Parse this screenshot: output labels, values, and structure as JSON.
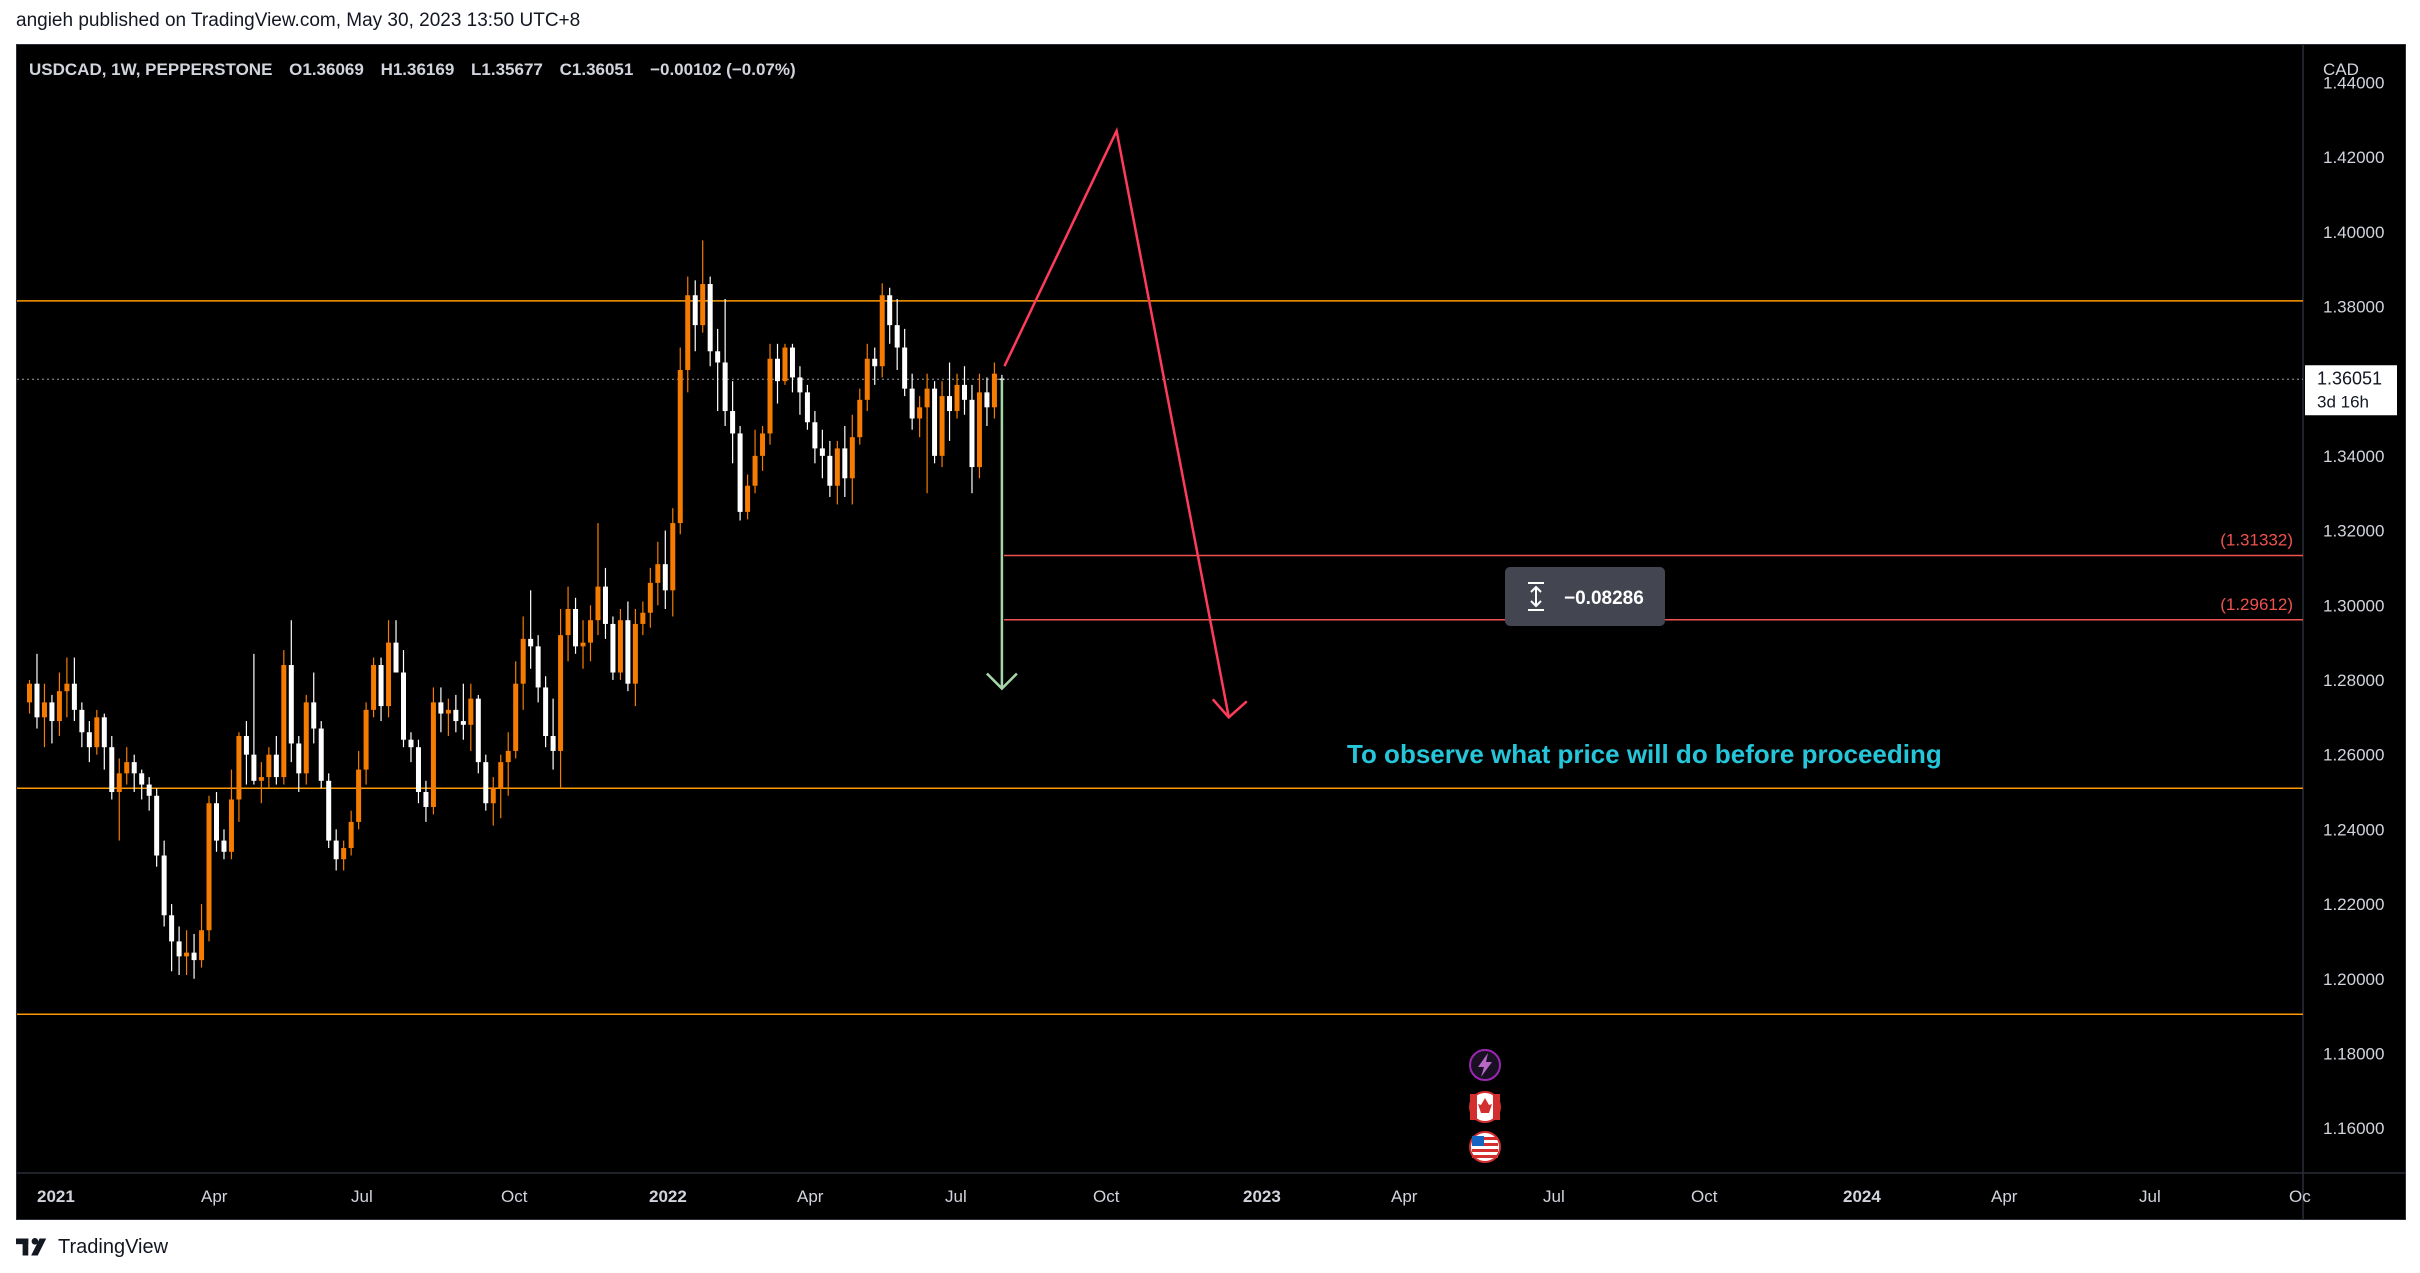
{
  "header": {
    "published_line": "angieh published on TradingView.com, May 30, 2023 13:50 UTC+8"
  },
  "legend": {
    "symbol": "USDCAD, 1W, PEPPERSTONE",
    "open": "O1.36069",
    "high": "H1.36169",
    "low": "L1.35677",
    "close": "C1.36051",
    "change": "−0.00102 (−0.07%)"
  },
  "price_axis": {
    "currency": "CAD",
    "ticks": [
      "1.44000",
      "1.42000",
      "1.40000",
      "1.38000",
      "1.36000",
      "1.34000",
      "1.32000",
      "1.30000",
      "1.28000",
      "1.26000",
      "1.24000",
      "1.22000",
      "1.20000",
      "1.18000",
      "1.16000"
    ],
    "current_price_label": "1.36051",
    "countdown": "3d 16h"
  },
  "time_axis": {
    "labels": [
      "2021",
      "Apr",
      "Jul",
      "Oct",
      "2022",
      "Apr",
      "Jul",
      "Oct",
      "2023",
      "Apr",
      "Jul",
      "Oct",
      "2024",
      "Apr",
      "Jul",
      "Oc"
    ]
  },
  "annotations": {
    "level_1": "(1.31332)",
    "level_2": "(1.29612)",
    "measure_value": "−0.08286",
    "note": "To observe what price will do before proceeding"
  },
  "footer": {
    "brand": "TradingView"
  },
  "colors": {
    "background": "#000000",
    "bull_candle": "#f57c00",
    "bear_candle": "#ffffff",
    "horizontal_line": "#ff9800",
    "red_level_line": "#ef5350",
    "red_arrow": "#ff3b5c",
    "green_arrow": "#a5d6a7",
    "note_text": "#26c6da"
  },
  "chart_data": {
    "type": "candlestick",
    "symbol": "USDCAD",
    "timeframe": "1W",
    "ylim": [
      1.148,
      1.45
    ],
    "horizontal_lines": [
      1.3815,
      1.251,
      1.1905
    ],
    "red_levels": [
      1.31332,
      1.29612
    ],
    "last_price": 1.36051,
    "projection_path": [
      [
        0,
        1.364
      ],
      [
        15,
        1.427
      ],
      [
        30,
        1.27
      ]
    ],
    "measure": {
      "from": 1.3605,
      "to": 1.2777,
      "value": -0.08286
    },
    "candles": [
      [
        1.274,
        1.28,
        1.271,
        1.279
      ],
      [
        1.279,
        1.287,
        1.267,
        1.27
      ],
      [
        1.27,
        1.279,
        1.262,
        1.274
      ],
      [
        1.274,
        1.276,
        1.263,
        1.269
      ],
      [
        1.269,
        1.282,
        1.265,
        1.277
      ],
      [
        1.277,
        1.286,
        1.27,
        1.279
      ],
      [
        1.279,
        1.286,
        1.269,
        1.272
      ],
      [
        1.272,
        1.274,
        1.262,
        1.266
      ],
      [
        1.266,
        1.269,
        1.258,
        1.262
      ],
      [
        1.262,
        1.272,
        1.26,
        1.27
      ],
      [
        1.27,
        1.271,
        1.256,
        1.262
      ],
      [
        1.262,
        1.265,
        1.248,
        1.25
      ],
      [
        1.25,
        1.259,
        1.237,
        1.255
      ],
      [
        1.255,
        1.262,
        1.252,
        1.258
      ],
      [
        1.258,
        1.26,
        1.25,
        1.255
      ],
      [
        1.255,
        1.256,
        1.248,
        1.252
      ],
      [
        1.252,
        1.254,
        1.245,
        1.249
      ],
      [
        1.249,
        1.251,
        1.23,
        1.233
      ],
      [
        1.233,
        1.237,
        1.214,
        1.217
      ],
      [
        1.217,
        1.22,
        1.202,
        1.21
      ],
      [
        1.21,
        1.214,
        1.201,
        1.206
      ],
      [
        1.206,
        1.213,
        1.201,
        1.207
      ],
      [
        1.207,
        1.212,
        1.2,
        1.205
      ],
      [
        1.205,
        1.22,
        1.203,
        1.213
      ],
      [
        1.213,
        1.249,
        1.21,
        1.247
      ],
      [
        1.247,
        1.25,
        1.234,
        1.237
      ],
      [
        1.237,
        1.24,
        1.232,
        1.234
      ],
      [
        1.234,
        1.256,
        1.232,
        1.248
      ],
      [
        1.248,
        1.266,
        1.242,
        1.265
      ],
      [
        1.265,
        1.269,
        1.252,
        1.26
      ],
      [
        1.26,
        1.287,
        1.252,
        1.253
      ],
      [
        1.253,
        1.258,
        1.247,
        1.254
      ],
      [
        1.254,
        1.262,
        1.251,
        1.26
      ],
      [
        1.26,
        1.265,
        1.252,
        1.254
      ],
      [
        1.254,
        1.288,
        1.252,
        1.284
      ],
      [
        1.284,
        1.296,
        1.258,
        1.263
      ],
      [
        1.263,
        1.265,
        1.25,
        1.255
      ],
      [
        1.255,
        1.276,
        1.252,
        1.274
      ],
      [
        1.274,
        1.282,
        1.263,
        1.267
      ],
      [
        1.267,
        1.269,
        1.251,
        1.253
      ],
      [
        1.253,
        1.255,
        1.235,
        1.237
      ],
      [
        1.237,
        1.24,
        1.229,
        1.232
      ],
      [
        1.232,
        1.237,
        1.229,
        1.235
      ],
      [
        1.235,
        1.245,
        1.233,
        1.242
      ],
      [
        1.242,
        1.261,
        1.24,
        1.256
      ],
      [
        1.256,
        1.274,
        1.252,
        1.272
      ],
      [
        1.272,
        1.286,
        1.27,
        1.284
      ],
      [
        1.284,
        1.286,
        1.269,
        1.273
      ],
      [
        1.273,
        1.296,
        1.27,
        1.29
      ],
      [
        1.29,
        1.296,
        1.282,
        1.282
      ],
      [
        1.282,
        1.288,
        1.262,
        1.264
      ],
      [
        1.264,
        1.266,
        1.258,
        1.262
      ],
      [
        1.262,
        1.264,
        1.247,
        1.25
      ],
      [
        1.25,
        1.253,
        1.242,
        1.246
      ],
      [
        1.246,
        1.278,
        1.244,
        1.274
      ],
      [
        1.274,
        1.278,
        1.266,
        1.271
      ],
      [
        1.271,
        1.275,
        1.265,
        1.272
      ],
      [
        1.272,
        1.276,
        1.266,
        1.269
      ],
      [
        1.269,
        1.279,
        1.264,
        1.268
      ],
      [
        1.268,
        1.279,
        1.261,
        1.275
      ],
      [
        1.275,
        1.276,
        1.255,
        1.258
      ],
      [
        1.258,
        1.26,
        1.245,
        1.247
      ],
      [
        1.247,
        1.254,
        1.241,
        1.251
      ],
      [
        1.251,
        1.26,
        1.243,
        1.258
      ],
      [
        1.258,
        1.266,
        1.249,
        1.261
      ],
      [
        1.261,
        1.285,
        1.259,
        1.279
      ],
      [
        1.279,
        1.297,
        1.272,
        1.291
      ],
      [
        1.291,
        1.304,
        1.283,
        1.289
      ],
      [
        1.289,
        1.292,
        1.274,
        1.278
      ],
      [
        1.278,
        1.281,
        1.262,
        1.265
      ],
      [
        1.265,
        1.275,
        1.256,
        1.261
      ],
      [
        1.261,
        1.299,
        1.251,
        1.292
      ],
      [
        1.292,
        1.305,
        1.285,
        1.299
      ],
      [
        1.299,
        1.302,
        1.287,
        1.289
      ],
      [
        1.289,
        1.296,
        1.283,
        1.29
      ],
      [
        1.29,
        1.3,
        1.285,
        1.296
      ],
      [
        1.296,
        1.322,
        1.292,
        1.305
      ],
      [
        1.305,
        1.31,
        1.291,
        1.295
      ],
      [
        1.295,
        1.297,
        1.28,
        1.282
      ],
      [
        1.282,
        1.299,
        1.28,
        1.296
      ],
      [
        1.296,
        1.301,
        1.277,
        1.279
      ],
      [
        1.279,
        1.299,
        1.273,
        1.295
      ],
      [
        1.295,
        1.301,
        1.292,
        1.298
      ],
      [
        1.298,
        1.31,
        1.294,
        1.306
      ],
      [
        1.306,
        1.317,
        1.3,
        1.311
      ],
      [
        1.311,
        1.32,
        1.299,
        1.304
      ],
      [
        1.304,
        1.326,
        1.297,
        1.322
      ],
      [
        1.322,
        1.369,
        1.319,
        1.363
      ],
      [
        1.363,
        1.388,
        1.357,
        1.383
      ],
      [
        1.383,
        1.387,
        1.368,
        1.375
      ],
      [
        1.375,
        1.3977,
        1.373,
        1.386
      ],
      [
        1.386,
        1.388,
        1.364,
        1.368
      ],
      [
        1.368,
        1.374,
        1.352,
        1.365
      ],
      [
        1.365,
        1.382,
        1.348,
        1.352
      ],
      [
        1.352,
        1.36,
        1.338,
        1.346
      ],
      [
        1.346,
        1.348,
        1.3227,
        1.325
      ],
      [
        1.325,
        1.335,
        1.323,
        1.332
      ],
      [
        1.332,
        1.347,
        1.33,
        1.34
      ],
      [
        1.34,
        1.348,
        1.336,
        1.346
      ],
      [
        1.346,
        1.37,
        1.343,
        1.366
      ],
      [
        1.366,
        1.37,
        1.354,
        1.36
      ],
      [
        1.36,
        1.37,
        1.359,
        1.369
      ],
      [
        1.369,
        1.37,
        1.357,
        1.361
      ],
      [
        1.361,
        1.364,
        1.351,
        1.357
      ],
      [
        1.357,
        1.359,
        1.347,
        1.349
      ],
      [
        1.349,
        1.352,
        1.338,
        1.342
      ],
      [
        1.342,
        1.347,
        1.334,
        1.34
      ],
      [
        1.34,
        1.344,
        1.329,
        1.332
      ],
      [
        1.332,
        1.344,
        1.327,
        1.342
      ],
      [
        1.342,
        1.348,
        1.329,
        1.334
      ],
      [
        1.334,
        1.351,
        1.327,
        1.345
      ],
      [
        1.345,
        1.358,
        1.343,
        1.355
      ],
      [
        1.355,
        1.37,
        1.352,
        1.366
      ],
      [
        1.366,
        1.369,
        1.359,
        1.364
      ],
      [
        1.364,
        1.3862,
        1.361,
        1.383
      ],
      [
        1.383,
        1.385,
        1.37,
        1.375
      ],
      [
        1.375,
        1.382,
        1.363,
        1.369
      ],
      [
        1.369,
        1.374,
        1.356,
        1.358
      ],
      [
        1.358,
        1.362,
        1.347,
        1.35
      ],
      [
        1.35,
        1.356,
        1.345,
        1.353
      ],
      [
        1.353,
        1.362,
        1.33,
        1.358
      ],
      [
        1.358,
        1.36,
        1.338,
        1.34
      ],
      [
        1.34,
        1.36,
        1.337,
        1.356
      ],
      [
        1.356,
        1.365,
        1.344,
        1.352
      ],
      [
        1.352,
        1.362,
        1.35,
        1.359
      ],
      [
        1.359,
        1.364,
        1.351,
        1.355
      ],
      [
        1.355,
        1.359,
        1.33,
        1.337
      ],
      [
        1.337,
        1.362,
        1.334,
        1.357
      ],
      [
        1.357,
        1.361,
        1.348,
        1.353
      ],
      [
        1.353,
        1.365,
        1.35,
        1.362
      ],
      [
        1.36069,
        1.36169,
        1.35677,
        1.36051
      ]
    ]
  }
}
